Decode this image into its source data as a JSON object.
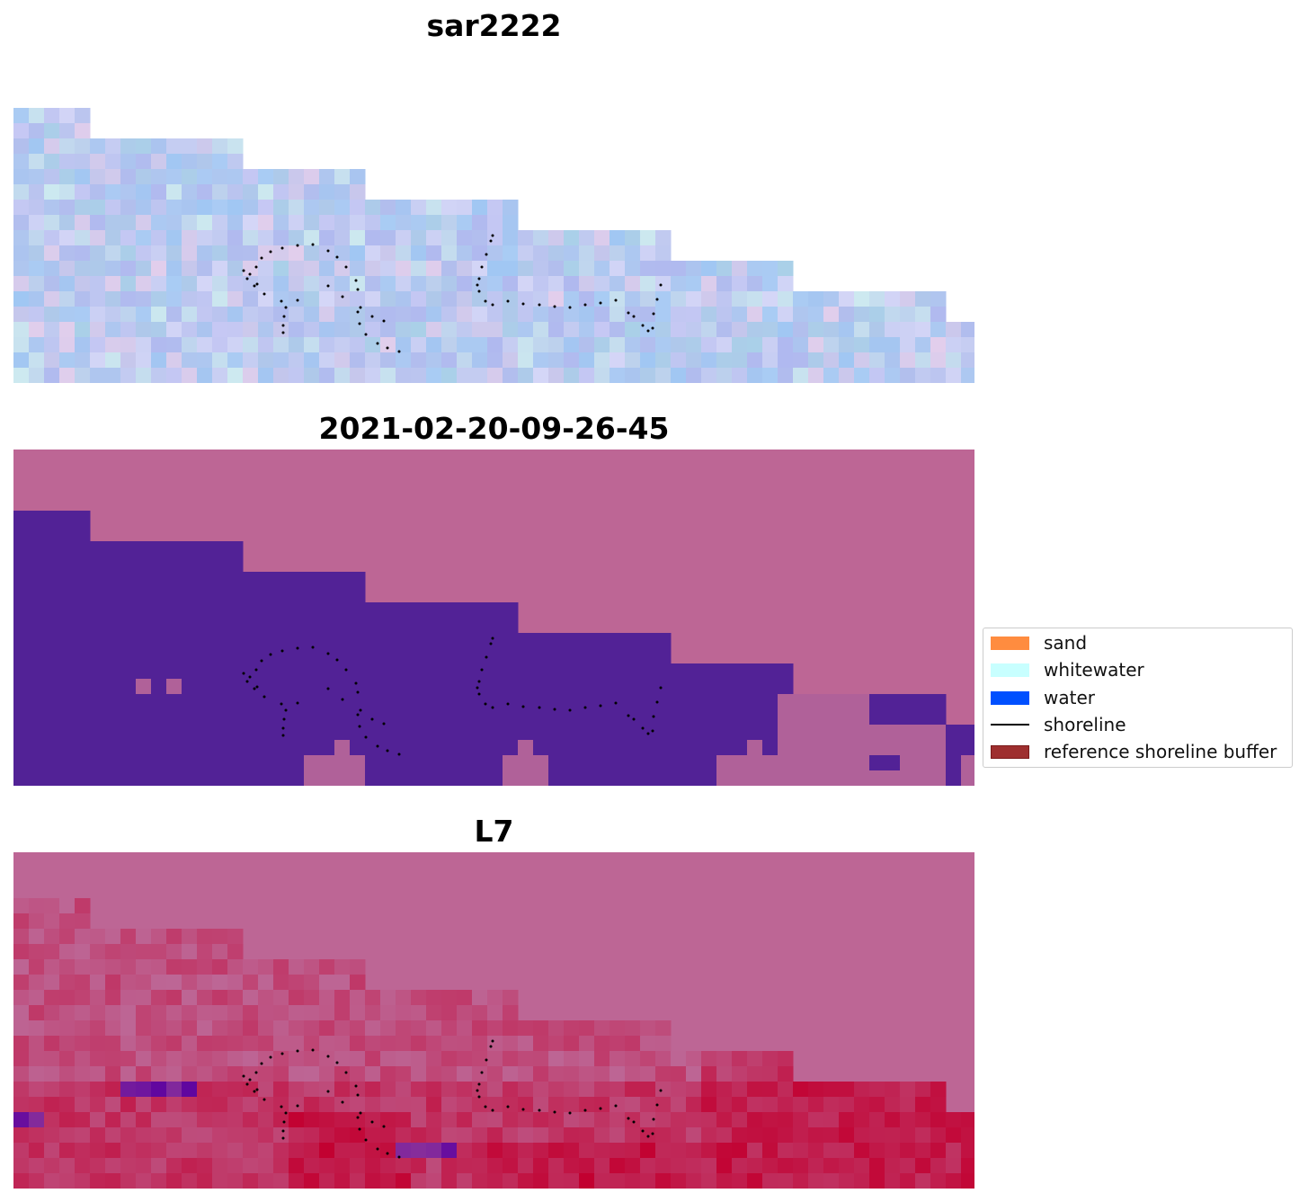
{
  "chart_data": [
    {
      "type": "heatmap",
      "panel": "rgb",
      "title": "sar2222",
      "grid": false,
      "axes": "off",
      "overlay_series": "shoreline"
    },
    {
      "type": "heatmap",
      "panel": "classification",
      "title": "2021-02-20-09-26-45",
      "grid": false,
      "axes": "off",
      "overlay_series": "shoreline"
    },
    {
      "type": "heatmap",
      "panel": "index",
      "title": "L7",
      "grid": false,
      "axes": "off",
      "overlay_series": "shoreline"
    }
  ],
  "legend": {
    "placement": "right",
    "items": [
      {
        "label": "sand",
        "kind": "patch",
        "color": "#FF8C3F"
      },
      {
        "label": "whitewater",
        "kind": "patch",
        "color": "#C8FFFF"
      },
      {
        "label": "water",
        "kind": "patch",
        "color": "#0050FF"
      },
      {
        "label": "shoreline",
        "kind": "line",
        "color": "#000000"
      },
      {
        "label": "reference shoreline buffer",
        "kind": "patch",
        "color": "#9E2F2F"
      }
    ]
  },
  "colors": {
    "land_background": "#BD6695",
    "water_class": "#522296",
    "mixed_class": "#B06199",
    "index_high": "#C20030",
    "index_low": "#5A00A0",
    "rgb_base": "#B3C2EC"
  }
}
